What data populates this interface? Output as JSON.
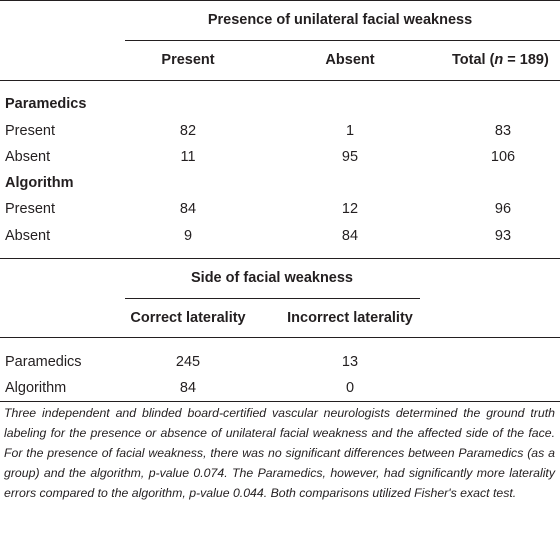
{
  "table1": {
    "group_header": "Presence of unilateral facial weakness",
    "columns": {
      "present": "Present",
      "absent": "Absent",
      "total_prefix": "Total (",
      "total_n": "n",
      "total_suffix": " = 189)"
    },
    "sections": [
      {
        "title": "Paramedics",
        "rows": [
          {
            "label": "Present",
            "present": "82",
            "absent": "1",
            "total": "83"
          },
          {
            "label": "Absent",
            "present": "11",
            "absent": "95",
            "total": "106"
          }
        ]
      },
      {
        "title": "Algorithm",
        "rows": [
          {
            "label": "Present",
            "present": "84",
            "absent": "12",
            "total": "96"
          },
          {
            "label": "Absent",
            "present": "9",
            "absent": "84",
            "total": "93"
          }
        ]
      }
    ]
  },
  "table2": {
    "group_header": "Side of facial weakness",
    "columns": {
      "correct": "Correct laterality",
      "incorrect": "Incorrect laterality"
    },
    "rows": [
      {
        "label": "Paramedics",
        "correct": "245",
        "incorrect": "13"
      },
      {
        "label": "Algorithm",
        "correct": "84",
        "incorrect": "0"
      }
    ]
  },
  "footnote": "Three independent and blinded board-certified vascular neurologists determined the ground truth labeling for the presence or absence of unilateral facial weakness and the affected side of the face. For the presence of facial weakness, there was no significant differences between Paramedics (as a group) and the algorithm, p-value 0.074. The Paramedics, however, had significantly more laterality errors compared to the algorithm, p-value 0.044. Both comparisons utilized Fisher's exact test."
}
